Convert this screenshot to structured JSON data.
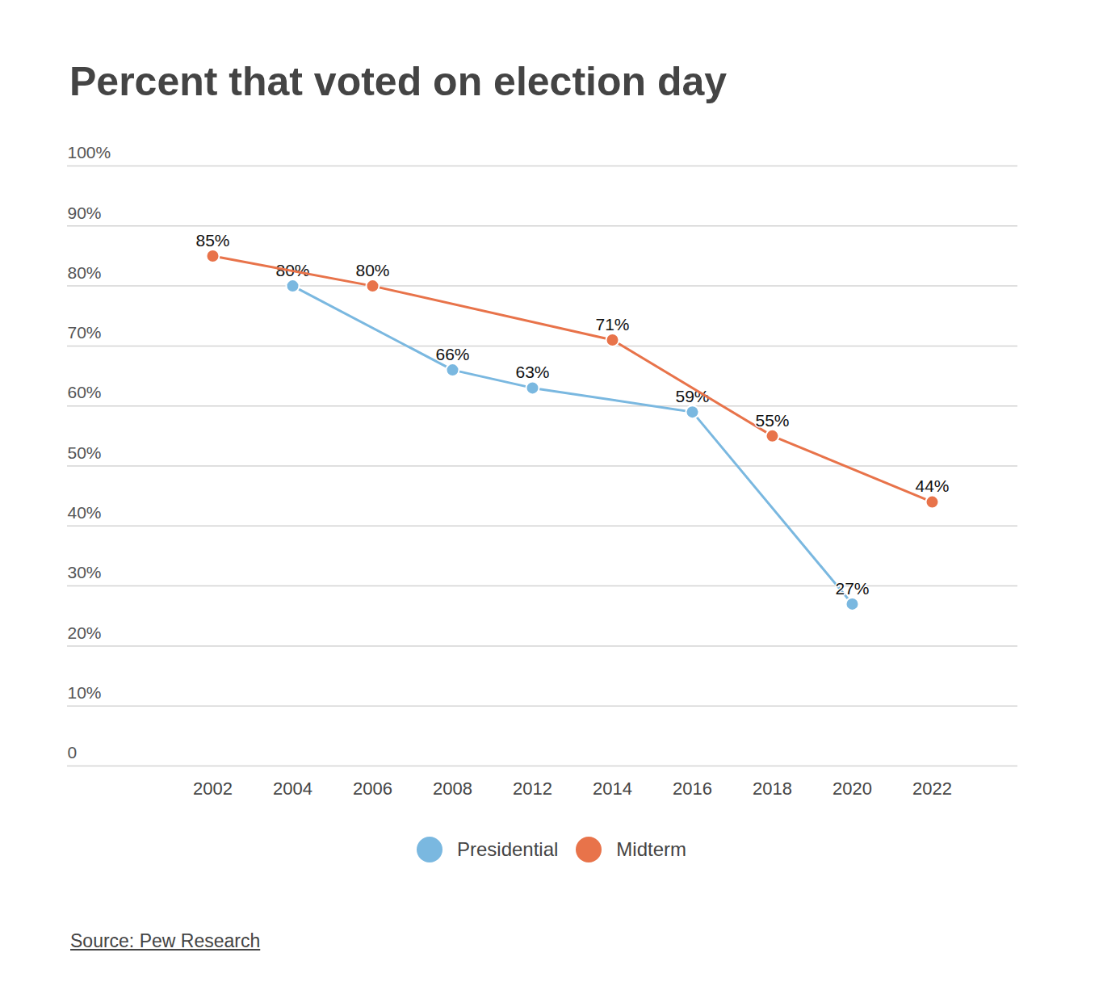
{
  "chart_data": {
    "type": "line",
    "title": "Percent that voted on election day",
    "source": "Source: Pew Research",
    "categories": [
      "2002",
      "2004",
      "2006",
      "2008",
      "2012",
      "2014",
      "2016",
      "2018",
      "2020",
      "2022"
    ],
    "series": [
      {
        "name": "Presidential",
        "color": "#7ab8e0",
        "marker": "circle",
        "x": [
          "2004",
          "2008",
          "2012",
          "2016",
          "2020"
        ],
        "values": [
          80,
          66,
          63,
          59,
          27
        ],
        "value_labels": [
          "80%",
          "66%",
          "63%",
          "59%",
          "27%"
        ]
      },
      {
        "name": "Midterm",
        "color": "#e8734a",
        "marker": "circle",
        "x": [
          "2002",
          "2006",
          "2014",
          "2018",
          "2022"
        ],
        "values": [
          85,
          80,
          71,
          55,
          44
        ],
        "value_labels": [
          "85%",
          "80%",
          "71%",
          "55%",
          "44%"
        ]
      }
    ],
    "ylim": [
      0,
      100
    ],
    "yticks": [
      0,
      {
        "value": 10,
        "label": "10%"
      },
      {
        "value": 20,
        "label": "20%"
      },
      {
        "value": 30,
        "label": "30%"
      },
      {
        "value": 40,
        "label": "40%"
      },
      {
        "value": 50,
        "label": "50%"
      },
      {
        "value": 60,
        "label": "60%"
      },
      {
        "value": 70,
        "label": "70%"
      },
      {
        "value": 80,
        "label": "80%"
      },
      {
        "value": 90,
        "label": "90%"
      },
      {
        "value": 100,
        "label": "100%"
      }
    ],
    "grid": true,
    "data_labels": true,
    "legend": "bottom"
  }
}
